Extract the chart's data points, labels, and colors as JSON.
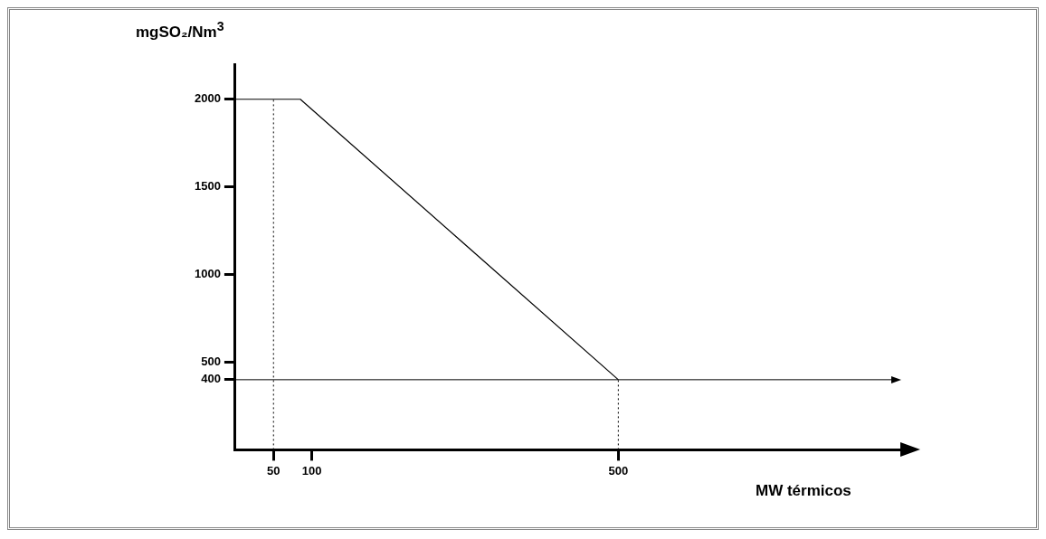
{
  "chart_data": {
    "type": "line",
    "xlabel": "MW térmicos",
    "ylabel": "mgSO₂/Nm$^{3}$",
    "xlim": [
      0,
      868
    ],
    "ylim": [
      0,
      2200
    ],
    "xticks": [
      50,
      100,
      500
    ],
    "yticks": [
      400,
      500,
      1000,
      1500,
      2000
    ],
    "grid": false,
    "marker": "none",
    "series": [
      {
        "x": [
          0,
          85,
          500
        ],
        "values": [
          2000,
          2000,
          400
        ],
        "color": "#000000",
        "line_style": "solid"
      },
      {
        "x": [
          50,
          50
        ],
        "values": [
          0,
          2000
        ],
        "color": "#000000",
        "line_style": "dotted"
      },
      {
        "x": [
          500,
          500
        ],
        "values": [
          0,
          400
        ],
        "color": "#000000",
        "line_style": "dotted"
      }
    ],
    "ref_lines": [
      {
        "axis": "y",
        "value": 400,
        "color": "#000000"
      }
    ]
  }
}
